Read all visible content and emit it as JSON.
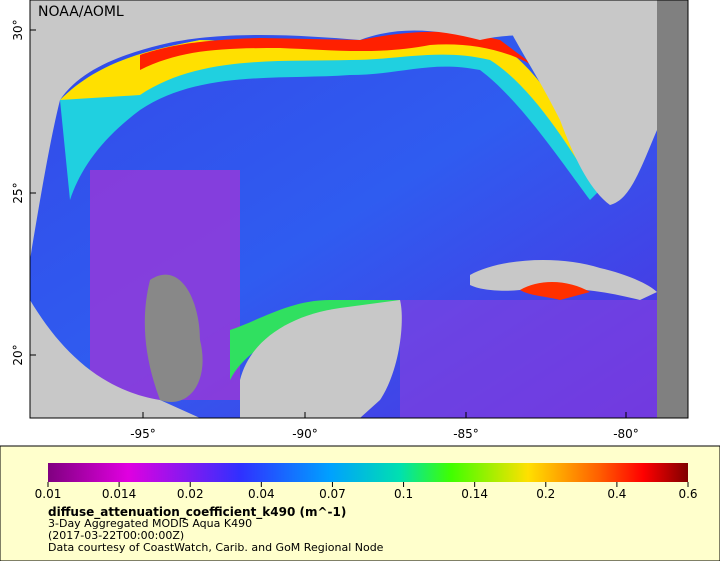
{
  "map": {
    "credit": "NOAA/AOML",
    "lat_labels": [
      "30°",
      "25°",
      "20°"
    ],
    "lon_labels": [
      "-95°",
      "-90°",
      "-85°",
      "-80°"
    ]
  },
  "colorbar": {
    "ticks": [
      "0.01",
      "0.014",
      "0.02",
      "0.04",
      "0.07",
      "0.1",
      "0.14",
      "0.2",
      "0.4",
      "0.6"
    ],
    "title": "diffuse_attenuation_coefficient_k490 (m^-1)",
    "lines": [
      "3-Day Aggregated MODIS Aqua K490",
      "(2017-03-22T00:00:00Z)",
      "Data courtesy of CoastWatch, Carib. and GoM Regional Node"
    ]
  }
}
